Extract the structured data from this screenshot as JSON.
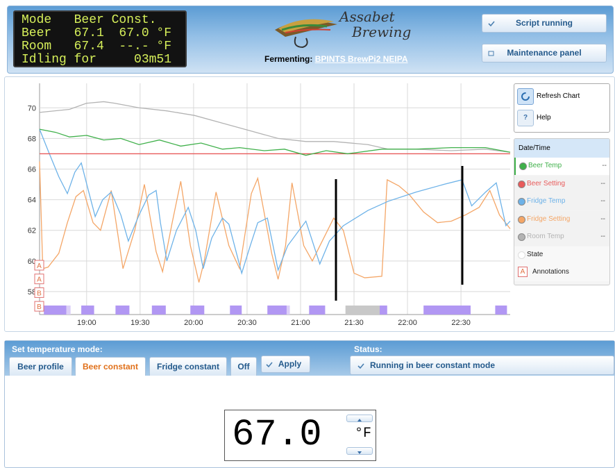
{
  "header": {
    "lcd": [
      "Mode   Beer Const.",
      "Beer   67.1  67.0 °F",
      "Room   67.4  --.- °F",
      "Idling for     03m51"
    ],
    "logo": [
      "Assabet",
      "Brewing"
    ],
    "fermenting_label": "Fermenting:",
    "beer_name": "BPINTS BrewPi2 NEIPA",
    "buttons": [
      "Script running",
      "Maintenance panel"
    ]
  },
  "chart_controls": {
    "refresh": "Refresh Chart",
    "help_icon": "?",
    "help": "Help"
  },
  "chart_data": {
    "type": "line",
    "xlim": [
      18.56,
      22.96
    ],
    "ylim": [
      56.5,
      71.6
    ],
    "xticks": [
      {
        "value": 19,
        "label": "19:00"
      },
      {
        "value": 19.5,
        "label": "19:30"
      },
      {
        "value": 20,
        "label": "20:00"
      },
      {
        "value": 20.5,
        "label": "20:30"
      },
      {
        "value": 21,
        "label": "21:00"
      },
      {
        "value": 21.5,
        "label": "21:30"
      },
      {
        "value": 22,
        "label": "22:00"
      },
      {
        "value": 22.5,
        "label": "22:30"
      }
    ],
    "yticks": [
      58,
      60,
      62,
      64,
      66,
      68,
      70
    ],
    "grid": true,
    "legend_header": "Date/Time",
    "series": [
      {
        "name": "Beer Temp",
        "color": "#3fb04a",
        "readout": "--",
        "x": [
          18.56,
          18.71,
          18.84,
          19.0,
          19.16,
          19.32,
          19.49,
          19.68,
          19.88,
          20.07,
          20.27,
          20.43,
          20.66,
          20.85,
          21.05,
          21.24,
          21.44,
          21.76,
          22.08,
          22.41,
          22.73,
          22.96
        ],
        "values": [
          68.6,
          68.4,
          68.1,
          68.2,
          67.9,
          68.0,
          67.6,
          67.9,
          67.5,
          67.7,
          67.3,
          67.4,
          67.2,
          67.3,
          66.9,
          67.2,
          67.0,
          67.3,
          67.3,
          67.4,
          67.4,
          67.1
        ]
      },
      {
        "name": "Beer Setting",
        "color": "#e85a5a",
        "readout": "--",
        "x": [
          18.56,
          22.96
        ],
        "values": [
          67.0,
          67.0
        ]
      },
      {
        "name": "Fridge Temp",
        "color": "#6db2e8",
        "readout": "--",
        "x": [
          18.56,
          18.64,
          18.74,
          18.82,
          18.89,
          18.95,
          19.02,
          19.08,
          19.15,
          19.23,
          19.32,
          19.39,
          19.49,
          19.58,
          19.65,
          19.69,
          19.75,
          19.84,
          19.95,
          20.02,
          20.09,
          20.17,
          20.27,
          20.33,
          20.45,
          20.53,
          20.6,
          20.69,
          20.79,
          20.88,
          21.05,
          21.18,
          21.27,
          21.4,
          21.63,
          21.82,
          22.08,
          22.34,
          22.51,
          22.6,
          22.73,
          22.83,
          22.92,
          22.96
        ],
        "values": [
          68.6,
          67.2,
          65.5,
          64.4,
          65.8,
          66.4,
          64.5,
          62.9,
          64.0,
          64.5,
          63.0,
          61.3,
          63.0,
          64.3,
          64.6,
          62.5,
          60.0,
          62.0,
          63.5,
          62.0,
          59.5,
          61.5,
          62.8,
          62.4,
          59.2,
          61.0,
          62.5,
          62.8,
          59.4,
          61.0,
          62.6,
          59.8,
          61.3,
          62.3,
          63.3,
          63.9,
          64.5,
          65.0,
          65.3,
          63.6,
          64.5,
          65.1,
          62.3,
          62.6
        ]
      },
      {
        "name": "Fridge Setting",
        "color": "#f4a667",
        "readout": "--",
        "x": [
          18.56,
          18.59,
          18.64,
          18.74,
          18.82,
          18.9,
          18.97,
          19.06,
          19.13,
          19.23,
          19.34,
          19.45,
          19.54,
          19.65,
          19.71,
          19.8,
          19.88,
          19.97,
          20.05,
          20.1,
          20.21,
          20.33,
          20.43,
          20.54,
          20.6,
          20.73,
          20.79,
          20.86,
          20.92,
          21.03,
          21.11,
          21.31,
          21.4,
          21.5,
          21.6,
          21.76,
          21.81,
          21.92,
          22.02,
          22.15,
          22.28,
          22.41,
          22.54,
          22.67,
          22.77,
          22.86,
          22.96
        ],
        "values": [
          66.5,
          59.5,
          59.6,
          60.5,
          62.5,
          64.2,
          64.6,
          62.5,
          62.0,
          64.6,
          59.5,
          62.0,
          65.0,
          60.6,
          59.3,
          62.5,
          65.2,
          61.0,
          58.6,
          60.0,
          64.5,
          61.0,
          59.5,
          64.4,
          65.4,
          60.5,
          58.8,
          61.0,
          65.1,
          61.0,
          60.0,
          62.8,
          62.0,
          59.2,
          58.9,
          59.0,
          65.3,
          64.9,
          64.3,
          63.2,
          62.5,
          62.6,
          63.0,
          63.5,
          64.6,
          63.0,
          62.1
        ]
      },
      {
        "name": "Room Temp",
        "color": "#b3b3b3",
        "readout": "--",
        "x": [
          18.56,
          18.84,
          19.0,
          19.16,
          19.26,
          19.49,
          19.75,
          20.01,
          20.27,
          20.53,
          20.79,
          21.05,
          21.31,
          21.63,
          21.82,
          22.08,
          22.41,
          22.73,
          22.96
        ],
        "values": [
          69.7,
          69.9,
          70.3,
          70.4,
          70.3,
          70.0,
          69.8,
          69.5,
          69.0,
          68.5,
          68.0,
          67.8,
          67.8,
          67.6,
          67.3,
          67.3,
          67.2,
          67.3,
          67.1
        ]
      }
    ],
    "state_name": "State",
    "states": [
      {
        "start": 18.6,
        "end": 18.81,
        "color": "#b197f3"
      },
      {
        "start": 18.81,
        "end": 18.85,
        "color": "#dccff7"
      },
      {
        "start": 18.95,
        "end": 19.07,
        "color": "#b197f3"
      },
      {
        "start": 19.27,
        "end": 19.4,
        "color": "#b197f3"
      },
      {
        "start": 19.61,
        "end": 19.74,
        "color": "#b197f3"
      },
      {
        "start": 19.97,
        "end": 20.1,
        "color": "#b197f3"
      },
      {
        "start": 20.34,
        "end": 20.45,
        "color": "#b197f3"
      },
      {
        "start": 20.69,
        "end": 20.87,
        "color": "#b197f3"
      },
      {
        "start": 20.87,
        "end": 20.9,
        "color": "#dccff7"
      },
      {
        "start": 21.08,
        "end": 21.23,
        "color": "#b197f3"
      },
      {
        "start": 21.42,
        "end": 21.74,
        "color": "#c8c8c8"
      },
      {
        "start": 21.74,
        "end": 21.81,
        "color": "#b197f3"
      },
      {
        "start": 22.15,
        "end": 22.59,
        "color": "#b197f3"
      },
      {
        "start": 22.82,
        "end": 22.93,
        "color": "#b197f3"
      }
    ],
    "annotations": [
      "A",
      "A",
      "B",
      "B"
    ],
    "annotation_icon": "A",
    "annotation_name": "Annotations"
  },
  "control": {
    "title": "Set temperature mode:",
    "tabs": [
      "Beer profile",
      "Beer constant",
      "Fridge constant",
      "Off"
    ],
    "active_tab": 1,
    "apply": "Apply",
    "status_title": "Status:",
    "status": "Running in beer constant mode",
    "setpoint": "67.0",
    "unit": "°F"
  }
}
